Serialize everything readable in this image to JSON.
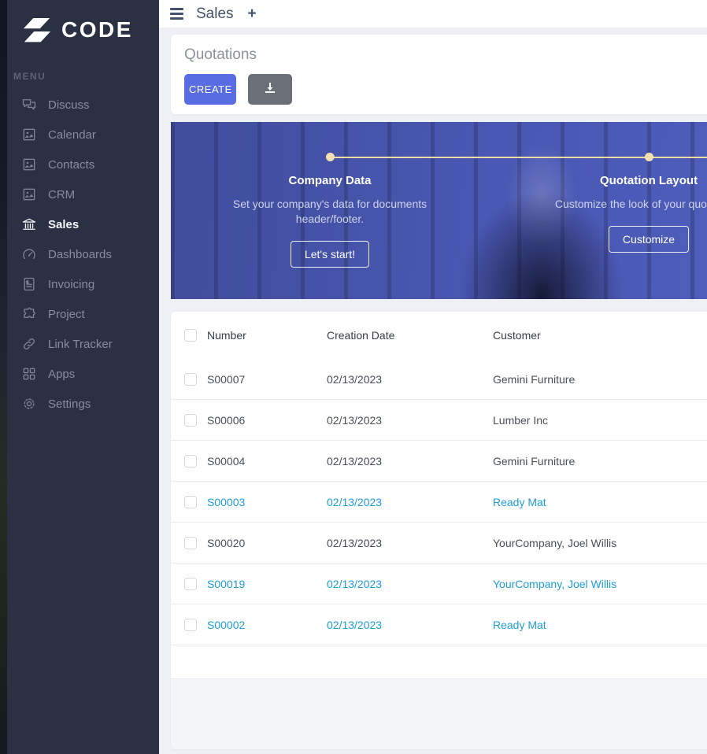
{
  "sidebar": {
    "logo_text": "CODE",
    "menu_label": "MENU",
    "items": [
      {
        "label": "Discuss",
        "icon": "chat-bubbles-icon",
        "active": false
      },
      {
        "label": "Calendar",
        "icon": "image-placeholder-icon",
        "active": false
      },
      {
        "label": "Contacts",
        "icon": "image-placeholder-icon",
        "active": false
      },
      {
        "label": "CRM",
        "icon": "image-placeholder-icon",
        "active": false
      },
      {
        "label": "Sales",
        "icon": "bank-icon",
        "active": true
      },
      {
        "label": "Dashboards",
        "icon": "gauge-icon",
        "active": false
      },
      {
        "label": "Invoicing",
        "icon": "invoice-icon",
        "active": false
      },
      {
        "label": "Project",
        "icon": "puzzle-icon",
        "active": false
      },
      {
        "label": "Link Tracker",
        "icon": "link-icon",
        "active": false
      },
      {
        "label": "Apps",
        "icon": "grid-icon",
        "active": false
      },
      {
        "label": "Settings",
        "icon": "gear-icon",
        "active": false
      }
    ]
  },
  "topbar": {
    "title": "Sales",
    "new_tab_icon": "+"
  },
  "page": {
    "title": "Quotations",
    "create_label": "CREATE"
  },
  "onboarding": {
    "steps": [
      {
        "title": "Company Data",
        "description": "Set your company's data for documents header/footer.",
        "button": "Let's start!"
      },
      {
        "title": "Quotation Layout",
        "description": "Customize the look of your quotations.",
        "button": "Customize"
      }
    ]
  },
  "table": {
    "columns": [
      "Number",
      "Creation Date",
      "Customer"
    ],
    "rows": [
      {
        "number": "S00007",
        "date": "02/13/2023",
        "customer": "Gemini Furniture",
        "link": false
      },
      {
        "number": "S00006",
        "date": "02/13/2023",
        "customer": "Lumber Inc",
        "link": false
      },
      {
        "number": "S00004",
        "date": "02/13/2023",
        "customer": "Gemini Furniture",
        "link": false
      },
      {
        "number": "S00003",
        "date": "02/13/2023",
        "customer": "Ready Mat",
        "link": true
      },
      {
        "number": "S00020",
        "date": "02/13/2023",
        "customer": "YourCompany, Joel Willis",
        "link": false
      },
      {
        "number": "S00019",
        "date": "02/13/2023",
        "customer": "YourCompany, Joel Willis",
        "link": true
      },
      {
        "number": "S00002",
        "date": "02/13/2023",
        "customer": "Ready Mat",
        "link": true
      }
    ]
  },
  "colors": {
    "sidebar_bg": "#2b3043",
    "accent_create": "#5a6ce2",
    "download_gray": "#6b6f77",
    "banner_blue": "#4a58b4",
    "timeline_cream": "#f2e0b0",
    "link_blue": "#1d9ed9"
  }
}
